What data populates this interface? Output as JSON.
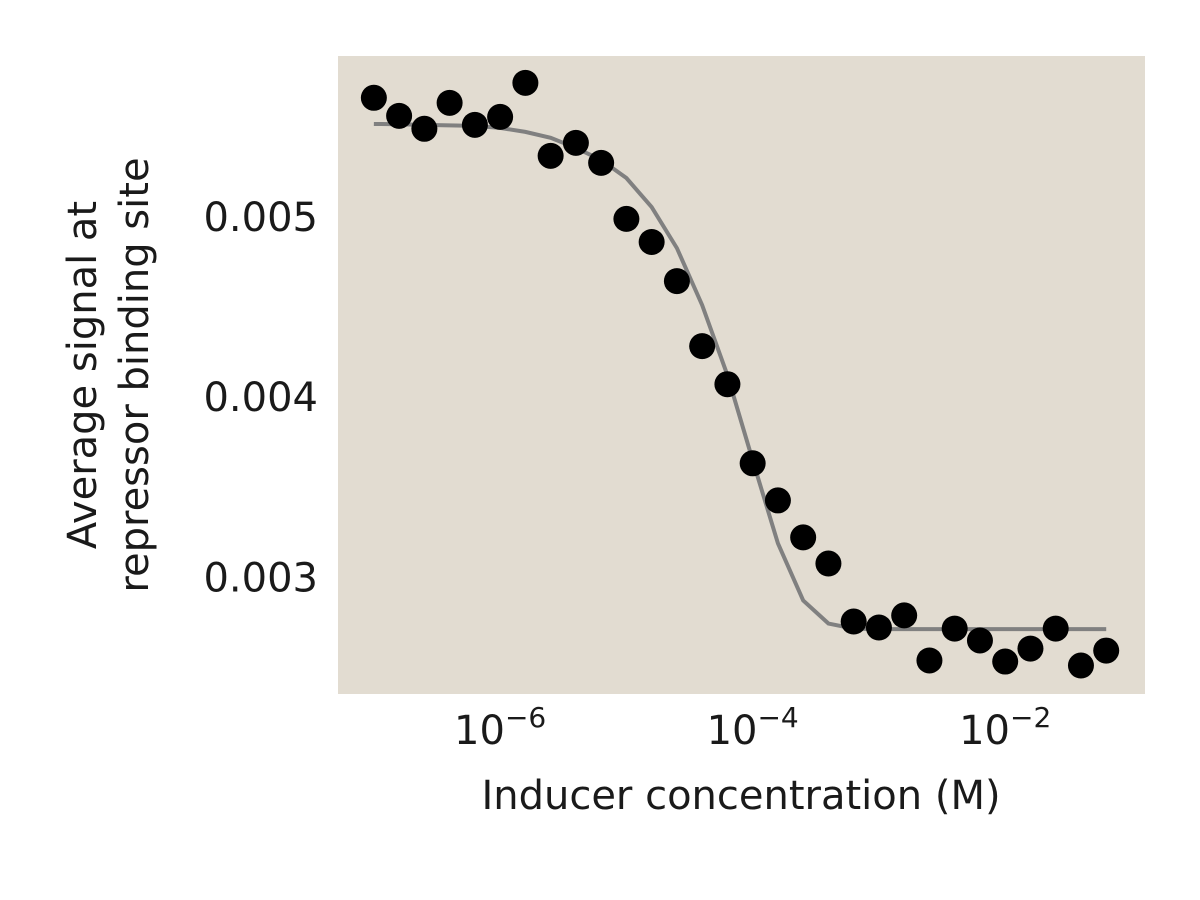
{
  "chart_data": {
    "type": "scatter",
    "xlabel": "Inducer concentration (M)",
    "ylabel": [
      "Average signal at",
      "repressor binding site"
    ],
    "xscale": "log",
    "background": "#e2dcd1",
    "grid": false,
    "x": [
      1e-07,
      1.585e-07,
      2.512e-07,
      3.981e-07,
      6.31e-07,
      1e-06,
      1.585e-06,
      2.512e-06,
      3.981e-06,
      6.31e-06,
      1e-05,
      1.585e-05,
      2.512e-05,
      3.981e-05,
      6.31e-05,
      0.0001,
      0.0001585,
      0.0002512,
      0.0003981,
      0.000631,
      0.001,
      0.001585,
      0.002512,
      0.003981,
      0.00631,
      0.01,
      0.01585,
      0.02512,
      0.03981,
      0.0631
    ],
    "series": [
      {
        "type": "scatter",
        "color": "#000000",
        "values": [
          0.005678,
          0.005578,
          0.005506,
          0.00565,
          0.005528,
          0.005572,
          0.005761,
          0.005356,
          0.005428,
          0.005317,
          0.005006,
          0.004878,
          0.004661,
          0.0043,
          0.004089,
          0.00365,
          0.003444,
          0.003239,
          0.003094,
          0.002772,
          0.002739,
          0.002806,
          0.002556,
          0.002733,
          0.002667,
          0.00255,
          0.002622,
          0.002733,
          0.002528,
          0.002611
        ]
      },
      {
        "type": "line",
        "color": "#808080",
        "values": [
          0.005533,
          0.005531,
          0.005528,
          0.005525,
          0.005522,
          0.005511,
          0.005489,
          0.005456,
          0.0054,
          0.005333,
          0.005233,
          0.005072,
          0.004844,
          0.004528,
          0.004139,
          0.003667,
          0.003206,
          0.002889,
          0.002761,
          0.002733,
          0.00273,
          0.00273,
          0.00273,
          0.00273,
          0.00273,
          0.00273,
          0.00273,
          0.00273,
          0.00273,
          0.00273
        ]
      }
    ],
    "xlim": [
      5.2e-08,
      0.128
    ],
    "ylim": [
      0.00237,
      0.00591
    ],
    "xticks": [
      {
        "value": 1e-06,
        "label": "10−6"
      },
      {
        "value": 0.0001,
        "label": "10−4"
      },
      {
        "value": 0.01,
        "label": "10−2"
      }
    ],
    "yticks": [
      0.003,
      0.004,
      0.005
    ]
  }
}
